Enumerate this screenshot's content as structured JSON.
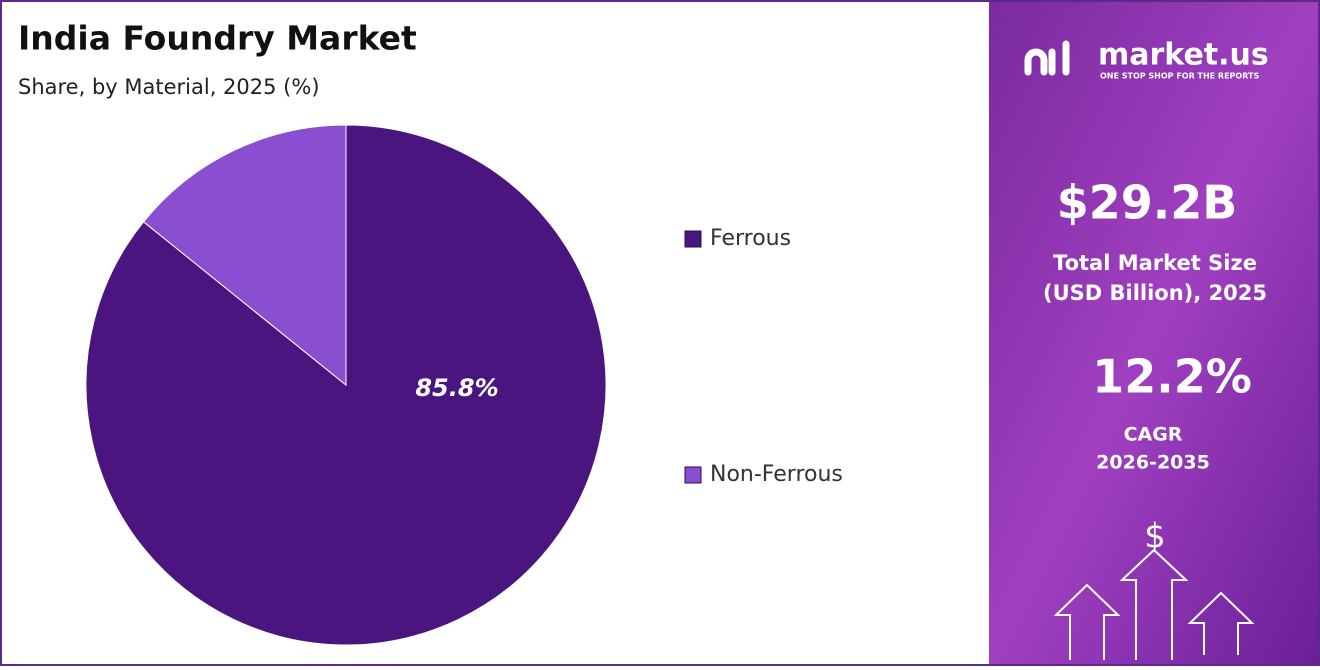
{
  "chart_data": {
    "type": "pie",
    "title": "India Foundry Market",
    "subtitle": "Share, by Material, 2025 (%)",
    "categories": [
      "Ferrous",
      "Non-Ferrous"
    ],
    "values": [
      85.8,
      14.2
    ],
    "value_labels": [
      "85.8%",
      null
    ],
    "colors": [
      "#4b1580",
      "#8a4fd0"
    ],
    "legend": "right"
  },
  "panel": {
    "brand": "market.us",
    "tagline": "ONE STOP SHOP FOR THE REPORTS",
    "market_size": "$29.2B",
    "market_size_label": [
      "Total Market Size",
      "(USD Billion), 2025"
    ],
    "cagr": "12.2%",
    "cagr_label": [
      "CAGR",
      "2026-2035"
    ],
    "icon": "$"
  }
}
